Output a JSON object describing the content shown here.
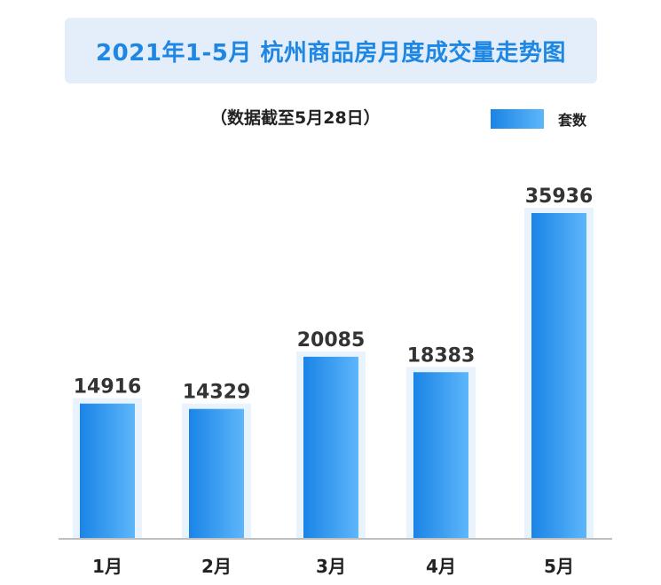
{
  "title": "2021年1-5月  杭州商品房月度成交量走势图",
  "subtitle": "（数据截至5月28日）",
  "legend": {
    "label": "套数"
  },
  "colors": {
    "title": "#1e86e3",
    "bar_start": "#1a84e6",
    "bar_end": "#5db6fa",
    "bar_glow": "#e8f3fd",
    "axis": "#bfbfbf"
  },
  "chart_data": {
    "type": "bar",
    "title": "2021年1-5月  杭州商品房月度成交量走势图",
    "subtitle": "（数据截至5月28日）",
    "categories": [
      "1月",
      "2月",
      "3月",
      "4月",
      "5月"
    ],
    "series": [
      {
        "name": "套数",
        "values": [
          14916,
          14329,
          20085,
          18383,
          35936
        ]
      }
    ],
    "data_labels": [
      "14916",
      "14329",
      "20085",
      "18383",
      "35936"
    ],
    "xlabel": "",
    "ylabel": "",
    "grid": false,
    "legend_position": "top-right"
  }
}
